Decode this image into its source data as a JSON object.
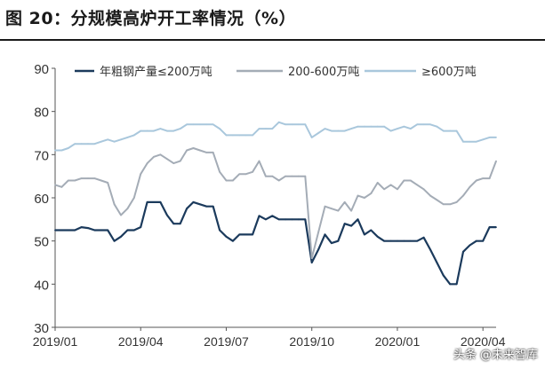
{
  "header": {
    "title": "图 20：分规模高炉开工率情况（%）"
  },
  "watermark": "头条 @未来智库",
  "chart_data": {
    "type": "line",
    "x_tick_labels": [
      "2019/01",
      "2019/04",
      "2019/07",
      "2019/10",
      "2020/01",
      "2020/04"
    ],
    "y_ticks": [
      30,
      40,
      50,
      60,
      70,
      80,
      90
    ],
    "ylim": [
      30,
      90
    ],
    "grid": false,
    "legend_position": "top",
    "xlabel": "",
    "ylabel": "",
    "colors": {
      "small": "#1b3a5c",
      "mid": "#a4acb6",
      "large": "#a9c7dc",
      "axis": "#555555"
    },
    "x": [
      "2019-01-02",
      "2019-01-09",
      "2019-01-16",
      "2019-01-23",
      "2019-01-30",
      "2019-02-06",
      "2019-02-13",
      "2019-02-20",
      "2019-02-27",
      "2019-03-06",
      "2019-03-13",
      "2019-03-20",
      "2019-03-27",
      "2019-04-03",
      "2019-04-10",
      "2019-04-17",
      "2019-04-24",
      "2019-05-01",
      "2019-05-08",
      "2019-05-15",
      "2019-05-22",
      "2019-05-29",
      "2019-06-05",
      "2019-06-12",
      "2019-06-19",
      "2019-06-26",
      "2019-07-03",
      "2019-07-10",
      "2019-07-17",
      "2019-07-24",
      "2019-07-31",
      "2019-08-07",
      "2019-08-14",
      "2019-08-21",
      "2019-08-28",
      "2019-09-04",
      "2019-09-11",
      "2019-09-18",
      "2019-09-25",
      "2019-10-02",
      "2019-10-09",
      "2019-10-16",
      "2019-10-23",
      "2019-10-30",
      "2019-11-06",
      "2019-11-13",
      "2019-11-20",
      "2019-11-27",
      "2019-12-04",
      "2019-12-11",
      "2019-12-18",
      "2019-12-25",
      "2020-01-01",
      "2020-01-08",
      "2020-01-15",
      "2020-01-22",
      "2020-01-29",
      "2020-02-05",
      "2020-02-12",
      "2020-02-19",
      "2020-02-26",
      "2020-03-04",
      "2020-03-11",
      "2020-03-18",
      "2020-03-25",
      "2020-04-01",
      "2020-04-08",
      "2020-04-15"
    ],
    "series": [
      {
        "name": "年粗钢产量≤200万吨",
        "key": "small",
        "values": [
          52.5,
          52.5,
          52.5,
          52.5,
          53.2,
          53.0,
          52.5,
          52.5,
          52.5,
          50.0,
          51.0,
          52.5,
          52.5,
          53.2,
          59.0,
          59.0,
          59.0,
          56.0,
          54.0,
          54.0,
          57.5,
          59.0,
          58.5,
          58.0,
          58.0,
          52.5,
          51.0,
          50.0,
          51.5,
          51.5,
          51.5,
          55.8,
          55.0,
          55.8,
          55.0,
          55.0,
          55.0,
          55.0,
          55.0,
          45.0,
          48.0,
          51.5,
          49.5,
          50.0,
          54.0,
          53.5,
          55.0,
          51.5,
          52.5,
          51.0,
          50.0,
          50.0,
          50.0,
          50.0,
          50.0,
          50.0,
          50.8,
          48.0,
          45.0,
          42.0,
          40.0,
          40.0,
          47.5,
          49.0,
          50.0,
          50.0,
          53.2,
          53.2
        ]
      },
      {
        "name": "200-600万吨",
        "key": "mid",
        "values": [
          63.0,
          62.5,
          64.0,
          64.0,
          64.5,
          64.5,
          64.5,
          64.0,
          63.5,
          58.5,
          56.0,
          57.5,
          60.0,
          65.5,
          68.0,
          69.5,
          70.0,
          69.0,
          68.0,
          68.5,
          71.0,
          71.5,
          71.0,
          70.5,
          70.5,
          66.0,
          64.0,
          64.0,
          65.5,
          65.5,
          66.0,
          68.5,
          65.0,
          65.0,
          64.0,
          65.0,
          65.0,
          65.0,
          65.0,
          46.0,
          52.0,
          58.0,
          57.5,
          57.0,
          59.0,
          57.0,
          60.5,
          60.0,
          61.0,
          63.5,
          62.0,
          63.0,
          62.0,
          64.0,
          64.0,
          63.0,
          62.0,
          60.5,
          59.5,
          58.5,
          58.5,
          59.0,
          60.5,
          62.5,
          64.0,
          64.5,
          64.5,
          68.5
        ]
      },
      {
        "name": "≥600万吨",
        "key": "large",
        "values": [
          71.0,
          71.0,
          71.5,
          72.5,
          72.5,
          72.5,
          72.5,
          73.0,
          73.5,
          73.0,
          73.5,
          74.0,
          74.5,
          75.5,
          75.5,
          75.5,
          76.0,
          75.5,
          75.5,
          76.0,
          77.0,
          77.0,
          77.0,
          77.0,
          77.0,
          76.0,
          74.5,
          74.5,
          74.5,
          74.5,
          74.5,
          76.0,
          76.0,
          76.0,
          77.5,
          77.0,
          77.0,
          77.0,
          77.0,
          74.0,
          75.0,
          76.0,
          75.5,
          75.5,
          75.5,
          76.0,
          76.5,
          76.5,
          76.5,
          76.5,
          76.5,
          75.5,
          76.0,
          76.5,
          76.0,
          77.0,
          77.0,
          77.0,
          76.5,
          75.5,
          75.5,
          75.5,
          73.0,
          73.0,
          73.0,
          73.5,
          74.0,
          74.0
        ]
      }
    ]
  }
}
